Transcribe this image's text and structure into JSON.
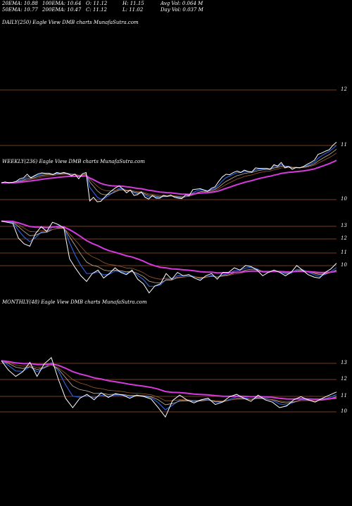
{
  "header": {
    "row1": [
      "20EMA: 10.88",
      "100EMA: 10.64",
      "O: 11.12",
      "H: 11.15",
      "Avg Vol: 0.064  M"
    ],
    "row2": [
      "50EMA: 10.77",
      "200EMA: 10.47",
      "C: 11.12",
      "L: 11.02",
      "Day Vol: 0.037 M"
    ]
  },
  "colors": {
    "background": "#000000",
    "price": "#ffffff",
    "ema_blue": "#2a5fd8",
    "ema_brown": "#9a5a2a",
    "ema_tan": "#c9b39a",
    "ema_magenta": "#d63adf",
    "gridline": "#7a3a1a"
  },
  "chart_data": [
    {
      "type": "line",
      "label": "DAILY(250) Eagle  View  DMB charts MunafaSutra.com",
      "y_ticks": [
        "12",
        "11",
        "10"
      ],
      "ylim": [
        9.6,
        12.4
      ],
      "series": [
        {
          "values": [
            10.22,
            10.24,
            10.22,
            10.23,
            10.25,
            10.31,
            10.33,
            10.41,
            10.33,
            10.38,
            10.42,
            10.44,
            10.43,
            10.43,
            10.4,
            10.45,
            10.43,
            10.45,
            10.42,
            10.38,
            10.41,
            10.31,
            10.42,
            10.45,
            9.82,
            9.9,
            9.8,
            9.81,
            9.9,
            9.98,
            10.05,
            10.11,
            10.15,
            10.08,
            10.0,
            10.06,
            9.94,
            9.96,
            10.02,
            9.9,
            9.86,
            9.94,
            9.88,
            9.88,
            9.94,
            9.92,
            9.95,
            9.9,
            9.88,
            9.87,
            9.95,
            9.94,
            10.07,
            10.08,
            10.09,
            10.06,
            10.03,
            10.1,
            10.13,
            10.25,
            10.35,
            10.41,
            10.4,
            10.45,
            10.48,
            10.45,
            10.5,
            10.47,
            10.46,
            10.55,
            10.54,
            10.54,
            10.54,
            10.52,
            10.62,
            10.59,
            10.67,
            10.55,
            10.58,
            10.52,
            10.56,
            10.55,
            10.58,
            10.63,
            10.67,
            10.72,
            10.85,
            10.88,
            10.92,
            10.95,
            11.05,
            11.12
          ]
        }
      ]
    },
    {
      "type": "line",
      "label": "WEEKLY(236) Eagle  View  DMB charts MunafaSutra.com",
      "y_ticks": [
        "13",
        "12",
        "11",
        "10"
      ],
      "ylim": [
        9.6,
        13.3
      ],
      "series": [
        {
          "values": [
            12.85,
            12.8,
            12.75,
            12.1,
            11.85,
            11.75,
            12.3,
            12.6,
            12.4,
            12.8,
            12.7,
            12.55,
            11.2,
            10.8,
            10.45,
            10.2,
            10.55,
            10.7,
            10.35,
            10.55,
            10.8,
            10.6,
            10.5,
            10.7,
            10.3,
            10.1,
            9.7,
            10.0,
            10.1,
            10.55,
            10.3,
            10.6,
            10.45,
            10.5,
            10.35,
            10.25,
            10.45,
            10.55,
            10.3,
            10.6,
            10.6,
            10.8,
            10.7,
            10.9,
            10.85,
            10.7,
            10.45,
            10.6,
            10.7,
            10.6,
            10.45,
            10.6,
            10.9,
            10.7,
            10.5,
            10.4,
            10.35,
            10.6,
            10.75,
            11.0
          ]
        }
      ]
    },
    {
      "type": "line",
      "label": "MONTHLY(48) Eagle  View  DMB charts MunafaSutra.com",
      "y_ticks": [
        "13",
        "12",
        "11",
        "10"
      ],
      "ylim": [
        9.2,
        13.7
      ],
      "series": [
        {
          "values": [
            13.1,
            12.5,
            12.1,
            12.4,
            13.0,
            12.1,
            12.9,
            13.3,
            11.9,
            10.7,
            10.1,
            10.7,
            10.95,
            10.6,
            11.05,
            10.75,
            11.0,
            10.9,
            10.7,
            10.9,
            10.8,
            10.65,
            10.1,
            9.5,
            10.55,
            10.9,
            10.6,
            10.4,
            10.6,
            10.7,
            10.3,
            10.45,
            10.8,
            10.95,
            10.7,
            10.5,
            10.9,
            10.6,
            10.45,
            10.1,
            10.2,
            10.6,
            10.8,
            10.6,
            10.45,
            10.7,
            10.9,
            11.1
          ]
        }
      ]
    }
  ]
}
